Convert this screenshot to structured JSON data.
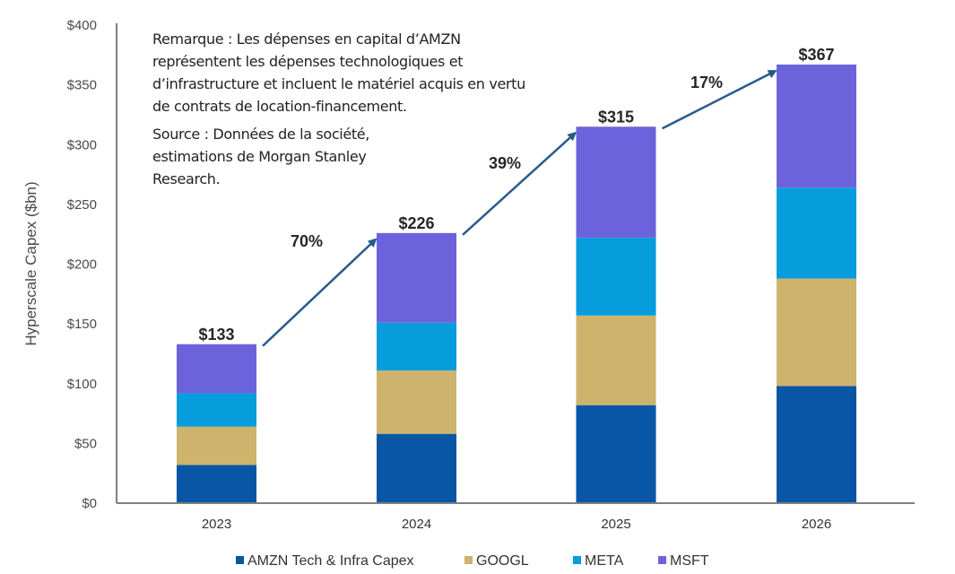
{
  "note": {
    "remark": "Remarque : Les dépenses en capital d’AMZN\nreprésentent les dépenses technologiques et\nd’infrastructure et incluent le matériel acquis en vertu\nde contrats de location-financement.",
    "source": "Source : Données de la société,\nestimations de Morgan Stanley\nResearch."
  },
  "chart_data": {
    "type": "bar",
    "stacked": true,
    "title": "",
    "xlabel": "",
    "ylabel": "Hyperscale Capex ($bn)",
    "ylim": [
      0,
      400
    ],
    "yticks": [
      0,
      50,
      100,
      150,
      200,
      250,
      300,
      350,
      400
    ],
    "ytick_labels": [
      "$0",
      "$50",
      "$100",
      "$150",
      "$200",
      "$250",
      "$300",
      "$350",
      "$400"
    ],
    "grid": false,
    "legend_position": "bottom",
    "categories": [
      "2023",
      "2024",
      "2025",
      "2026"
    ],
    "series": [
      {
        "name": "AMZN Tech & Infra Capex",
        "color": "#0A56A6",
        "values": [
          32,
          58,
          82,
          98
        ]
      },
      {
        "name": "GOOGL",
        "color": "#CDB36B",
        "values": [
          32,
          53,
          75,
          90
        ]
      },
      {
        "name": "META",
        "color": "#079DDC",
        "values": [
          28,
          40,
          65,
          76
        ]
      },
      {
        "name": "MSFT",
        "color": "#6C63DC",
        "values": [
          41,
          75,
          93,
          103
        ]
      }
    ],
    "totals": [
      133,
      226,
      315,
      367
    ],
    "total_labels": [
      "$133",
      "$226",
      "$315",
      "$367"
    ],
    "growth_annotations": [
      {
        "from": "2023",
        "to": "2024",
        "label": "70%"
      },
      {
        "from": "2024",
        "to": "2025",
        "label": "39%"
      },
      {
        "from": "2025",
        "to": "2026",
        "label": "17%"
      }
    ],
    "arrow_color": "#2A5A8C"
  }
}
